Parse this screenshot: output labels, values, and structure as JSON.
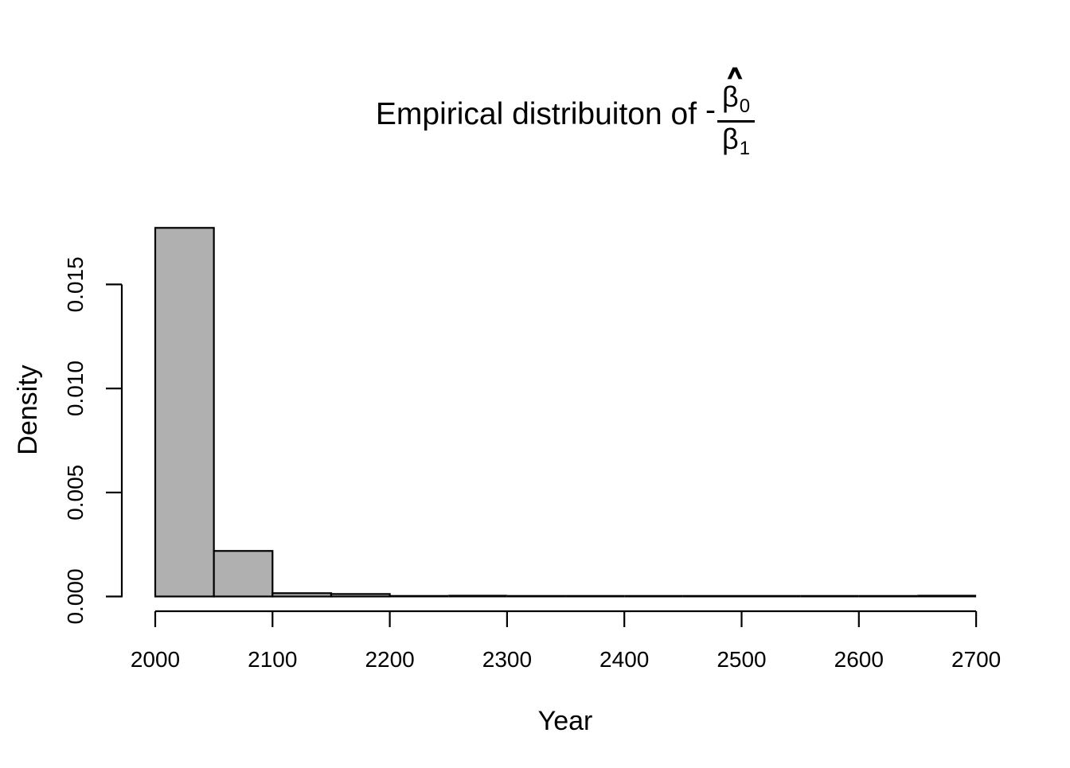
{
  "title": {
    "prefix": "Empirical distribuiton of",
    "minus": "-",
    "fraction": {
      "numerator_hat": "∧",
      "numerator_base": "β",
      "numerator_sub": "0",
      "denominator_base": "β",
      "denominator_sub": "1"
    }
  },
  "chart_data": {
    "type": "bar",
    "subtype": "histogram",
    "title": "Empirical distribuiton of -(β̂0 / β1)",
    "xlabel": "Year",
    "ylabel": "Density",
    "bin_width": 50,
    "bin_edges": [
      2000,
      2050,
      2100,
      2150,
      2200,
      2250,
      2300,
      2350,
      2400,
      2450,
      2500,
      2550,
      2600,
      2650,
      2700
    ],
    "densities": [
      0.01772,
      0.00219,
      0.00016,
      0.00012,
      4e-05,
      8e-05,
      3e-05,
      4e-05,
      2e-05,
      3e-05,
      2e-05,
      3e-05,
      2e-05,
      8e-05
    ],
    "x_ticks": [
      2000,
      2100,
      2200,
      2300,
      2400,
      2500,
      2600,
      2700
    ],
    "y_ticks": [
      {
        "value": 0.0,
        "label": "0.000"
      },
      {
        "value": 0.005,
        "label": "0.005"
      },
      {
        "value": 0.01,
        "label": "0.010"
      },
      {
        "value": 0.015,
        "label": "0.015"
      }
    ],
    "xlim": [
      2000,
      2700
    ],
    "ylim": [
      0,
      0.0184
    ],
    "grid": false,
    "legend": "none",
    "bar_fill": "#b0b0b0",
    "bar_stroke": "#000000",
    "axis_color": "#000000",
    "background": "#ffffff"
  }
}
